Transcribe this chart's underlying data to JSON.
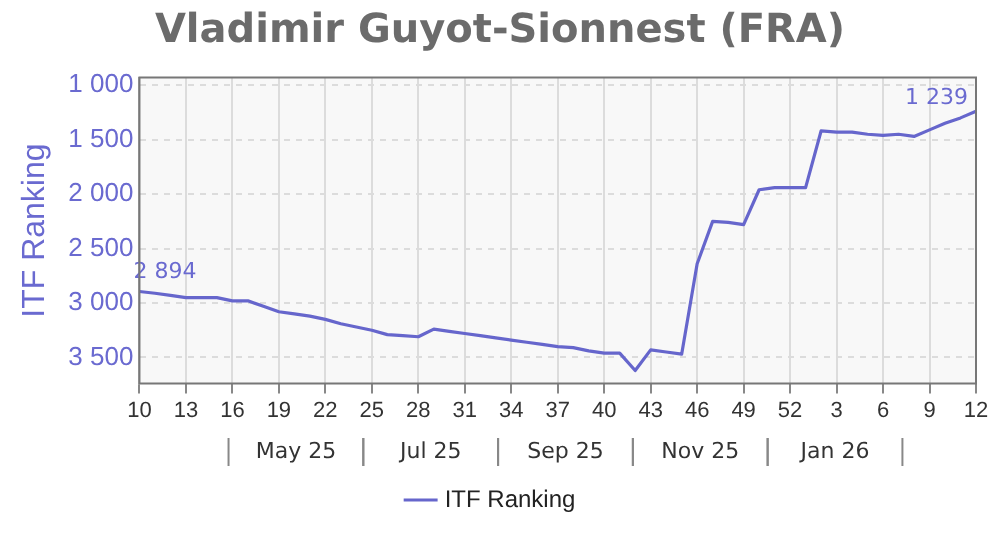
{
  "chart_data": {
    "type": "line",
    "title": "Vladimir Guyot-Sionnest (FRA)",
    "ylabel": "ITF Ranking",
    "categories": [
      "10",
      null,
      null,
      "13",
      null,
      null,
      "16",
      null,
      null,
      "19",
      null,
      null,
      "22",
      null,
      null,
      "25",
      null,
      null,
      "28",
      null,
      null,
      "31",
      null,
      null,
      "34",
      null,
      null,
      "37",
      null,
      null,
      "40",
      null,
      null,
      "43",
      null,
      null,
      "46",
      null,
      null,
      "49",
      null,
      null,
      "52",
      null,
      null,
      "3",
      null,
      null,
      "6",
      null,
      null,
      "9",
      null,
      null,
      "12"
    ],
    "series": [
      {
        "name": "ITF Ranking",
        "color": "#6666cc",
        "values": [
          2894,
          2910,
          2930,
          2950,
          2950,
          2950,
          2980,
          2980,
          3030,
          3080,
          3100,
          3120,
          3150,
          3190,
          3220,
          3250,
          3290,
          3300,
          3310,
          3240,
          3260,
          3280,
          3300,
          3320,
          3340,
          3360,
          3380,
          3400,
          3410,
          3440,
          3460,
          3460,
          3620,
          3430,
          3450,
          3470,
          2640,
          2250,
          2260,
          2280,
          1960,
          1940,
          1940,
          1940,
          1420,
          1430,
          1430,
          1450,
          1460,
          1450,
          1470,
          1410,
          1350,
          1300,
          1239
        ],
        "value_labels": [
          "2 894",
          null,
          null,
          null,
          null,
          null,
          null,
          null,
          null,
          null,
          null,
          null,
          null,
          null,
          null,
          null,
          null,
          null,
          null,
          null,
          null,
          null,
          null,
          null,
          null,
          null,
          null,
          null,
          null,
          null,
          null,
          null,
          null,
          null,
          null,
          null,
          null,
          null,
          null,
          null,
          null,
          null,
          null,
          null,
          null,
          null,
          null,
          null,
          null,
          null,
          null,
          null,
          null,
          null,
          "1 239"
        ]
      }
    ],
    "annotations": [
      "May 25",
      "Jul 25",
      "Sep 25",
      "Nov 25",
      "Jan 26"
    ],
    "ylim": [
      3740,
      930
    ],
    "yticks": [
      {
        "value": 1000,
        "label": "1 000"
      },
      {
        "value": 1500,
        "label": "1 500"
      },
      {
        "value": 2000,
        "label": "2 000"
      },
      {
        "value": 2500,
        "label": "2 500"
      },
      {
        "value": 3000,
        "label": "3 000"
      },
      {
        "value": 3500,
        "label": "3 500"
      }
    ],
    "grid": true,
    "legend": "bottom",
    "marker": "none"
  }
}
